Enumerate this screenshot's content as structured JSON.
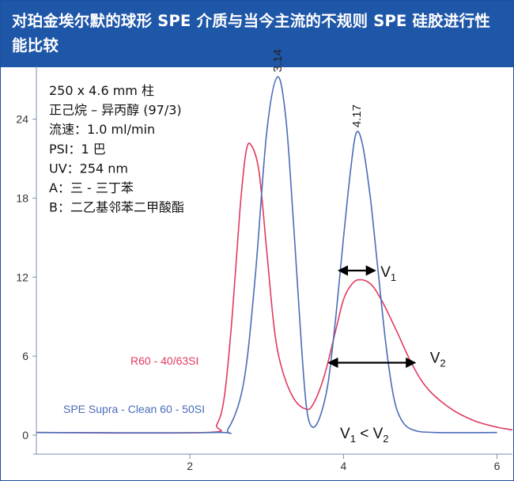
{
  "title": "对珀金埃尔默的球形 SPE 介质与当今主流的不规则 SPE 硅胶进行性能比较",
  "conditions": [
    "250 x 4.6 mm 柱",
    "正己烷 – 异丙醇 (97/3)",
    "流速：1.0 ml/min",
    "PSI：1 巴",
    "UV：254 nm",
    "A：三 - 三丁苯",
    "B：二乙基邻苯二甲酸酯"
  ],
  "colors": {
    "header": "#1f57a8",
    "blue_series": "#4a6cb8",
    "red_series": "#e03a5f",
    "axis": "#7a8fb8"
  },
  "chart_data": {
    "type": "line",
    "xlim": [
      0,
      6.2
    ],
    "ylim": [
      0,
      28
    ],
    "x_ticks": [
      "2",
      "4",
      "6"
    ],
    "y_ticks": [
      "0",
      "6",
      "12",
      "18",
      "24"
    ],
    "series": [
      {
        "name": "SPE Supra - Clean 60 - 50SI",
        "color": "#4a6cb8",
        "points": [
          [
            0,
            0.2
          ],
          [
            2.3,
            0.2
          ],
          [
            2.5,
            0.5
          ],
          [
            2.7,
            4
          ],
          [
            2.85,
            12
          ],
          [
            3.0,
            23
          ],
          [
            3.14,
            27.2
          ],
          [
            3.25,
            24
          ],
          [
            3.35,
            16
          ],
          [
            3.45,
            7
          ],
          [
            3.52,
            2
          ],
          [
            3.6,
            0.6
          ],
          [
            3.7,
            1.5
          ],
          [
            3.8,
            4
          ],
          [
            3.9,
            9
          ],
          [
            4.0,
            15
          ],
          [
            4.1,
            20.5
          ],
          [
            4.17,
            23
          ],
          [
            4.25,
            22
          ],
          [
            4.35,
            18
          ],
          [
            4.45,
            12.5
          ],
          [
            4.55,
            7
          ],
          [
            4.65,
            3
          ],
          [
            4.75,
            1.2
          ],
          [
            4.9,
            0.4
          ],
          [
            5.2,
            0.2
          ],
          [
            6.0,
            0.2
          ]
        ]
      },
      {
        "name": "R60 - 40/63SI",
        "color": "#e03a5f",
        "points": [
          [
            0,
            0.2
          ],
          [
            2.2,
            0.2
          ],
          [
            2.35,
            0.8
          ],
          [
            2.45,
            3
          ],
          [
            2.55,
            9
          ],
          [
            2.65,
            17
          ],
          [
            2.73,
            21.5
          ],
          [
            2.8,
            22
          ],
          [
            2.9,
            20
          ],
          [
            3.0,
            14
          ],
          [
            3.1,
            8
          ],
          [
            3.2,
            5
          ],
          [
            3.35,
            2.8
          ],
          [
            3.5,
            2
          ],
          [
            3.6,
            2.3
          ],
          [
            3.75,
            4.5
          ],
          [
            3.9,
            8
          ],
          [
            4.0,
            10.3
          ],
          [
            4.1,
            11.4
          ],
          [
            4.2,
            11.8
          ],
          [
            4.35,
            11.5
          ],
          [
            4.5,
            10.2
          ],
          [
            4.7,
            7.8
          ],
          [
            4.9,
            5.3
          ],
          [
            5.1,
            3.5
          ],
          [
            5.4,
            2
          ],
          [
            5.7,
            1.1
          ],
          [
            6.0,
            0.6
          ],
          [
            6.2,
            0.4
          ]
        ]
      }
    ],
    "peak_labels": [
      {
        "text": "3.14",
        "x": 3.14,
        "y": 27.2
      },
      {
        "text": "4.17",
        "x": 4.17,
        "y": 23
      }
    ],
    "annotations": {
      "v1_label": "V",
      "v1_sub": "1",
      "v1_span": [
        3.95,
        4.4
      ],
      "v1_y": 12.5,
      "v2_label": "V",
      "v2_sub": "2",
      "v2_span": [
        3.82,
        4.92
      ],
      "v2_y": 5.5,
      "relation": {
        "a": "V",
        "a_sub": "1",
        "op": " < ",
        "b": "V",
        "b_sub": "2"
      }
    }
  }
}
